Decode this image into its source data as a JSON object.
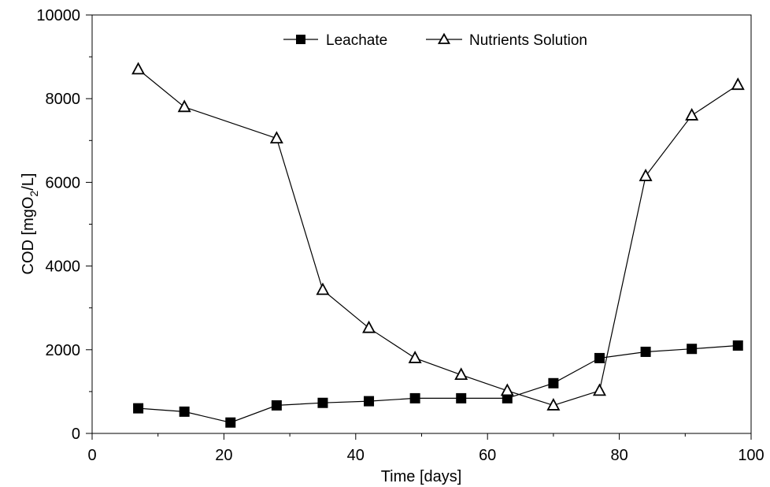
{
  "chart_data": {
    "type": "line",
    "title": "",
    "xlabel": "Time [days]",
    "ylabel_parts": [
      "COD [mgO",
      "2",
      "/L]"
    ],
    "xlim": [
      0,
      100
    ],
    "ylim": [
      0,
      10000
    ],
    "xticks": [
      0,
      20,
      40,
      60,
      80,
      100
    ],
    "yticks": [
      0,
      2000,
      4000,
      6000,
      8000,
      10000
    ],
    "x_minor_step": 10,
    "y_minor_step": 1000,
    "grid": false,
    "legend_position": "top-center",
    "line_color": "#000000",
    "series": [
      {
        "name": "Leachate",
        "marker": "filled-square",
        "x": [
          7,
          14,
          21,
          28,
          35,
          42,
          49,
          56,
          63,
          70,
          77,
          84,
          91,
          98
        ],
        "y": [
          600,
          520,
          260,
          670,
          730,
          770,
          840,
          840,
          840,
          1200,
          1800,
          1950,
          2020,
          2100
        ]
      },
      {
        "name": "Nutrients Solution",
        "marker": "open-triangle",
        "x": [
          7,
          14,
          28,
          35,
          42,
          49,
          56,
          63,
          70,
          77,
          84,
          91,
          98
        ],
        "y": [
          8700,
          7800,
          7050,
          3430,
          2520,
          1800,
          1400,
          1020,
          670,
          1020,
          6150,
          7600,
          8330
        ]
      }
    ]
  }
}
